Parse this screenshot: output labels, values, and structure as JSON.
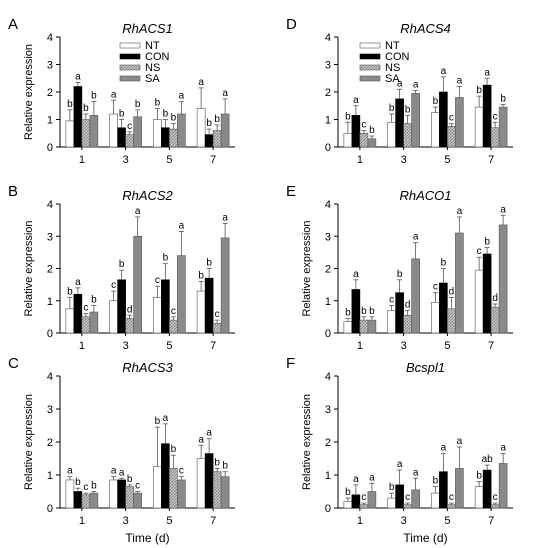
{
  "figure": {
    "series": [
      {
        "name": "NT",
        "fill": "#ffffff",
        "pattern": "none"
      },
      {
        "name": "CON",
        "fill": "#000000",
        "pattern": "none"
      },
      {
        "name": "NS",
        "fill": "#bdbdbd",
        "pattern": "hatch"
      },
      {
        "name": "SA",
        "fill": "#8a8a8a",
        "pattern": "none"
      }
    ],
    "colors": {
      "axis": "#000000",
      "bar_outline": "#555555"
    }
  },
  "chart_data": [
    {
      "type": "bar",
      "letter": "A",
      "title": "RhACS1",
      "categories": [
        "1",
        "3",
        "5",
        "7"
      ],
      "ylim": [
        0,
        4
      ],
      "yticks": [
        "0",
        "1",
        "2",
        "3",
        "4"
      ],
      "ylabel": "Relative expression",
      "xlabel": "",
      "legend": "top-right",
      "series": [
        {
          "name": "NT",
          "values": [
            0.95,
            1.2,
            1.0,
            1.4
          ],
          "errors": [
            0.4,
            0.5,
            0.4,
            0.75
          ],
          "labels": [
            "b",
            "a",
            "b",
            "a"
          ]
        },
        {
          "name": "CON",
          "values": [
            2.2,
            0.7,
            0.7,
            0.45
          ],
          "errors": [
            0.15,
            0.3,
            0.3,
            0.2
          ],
          "labels": [
            "a",
            "b",
            "b",
            "b"
          ]
        },
        {
          "name": "NS",
          "values": [
            1.0,
            0.45,
            0.65,
            0.6
          ],
          "errors": [
            0.2,
            0.1,
            0.2,
            0.2
          ],
          "labels": [
            "b",
            "c",
            "b",
            "b"
          ]
        },
        {
          "name": "SA",
          "values": [
            1.15,
            1.1,
            1.2,
            1.2
          ],
          "errors": [
            0.5,
            0.25,
            0.45,
            0.55
          ],
          "labels": [
            "b",
            "b",
            "a",
            "a"
          ]
        }
      ]
    },
    {
      "type": "bar",
      "letter": "D",
      "title": "RhACS4",
      "categories": [
        "1",
        "3",
        "5",
        "7"
      ],
      "ylim": [
        0,
        4
      ],
      "yticks": [
        "0",
        "1",
        "2",
        "3",
        "4"
      ],
      "ylabel": "",
      "xlabel": "",
      "legend": "top-left",
      "series": [
        {
          "name": "NT",
          "values": [
            0.5,
            0.9,
            1.25,
            1.45
          ],
          "errors": [
            0.4,
            0.3,
            0.2,
            0.4
          ],
          "labels": [
            "b",
            "b",
            "b",
            "b"
          ]
        },
        {
          "name": "CON",
          "values": [
            1.15,
            1.75,
            2.0,
            2.25
          ],
          "errors": [
            0.35,
            0.35,
            0.55,
            0.25
          ],
          "labels": [
            "a",
            "a",
            "a",
            "a"
          ]
        },
        {
          "name": "NS",
          "values": [
            0.5,
            0.85,
            0.75,
            0.7
          ],
          "errors": [
            0.1,
            0.3,
            0.1,
            0.2
          ],
          "labels": [
            "c",
            "b",
            "c",
            "c"
          ]
        },
        {
          "name": "SA",
          "values": [
            0.3,
            1.95,
            1.8,
            1.45
          ],
          "errors": [
            0.1,
            0.1,
            0.4,
            0.1
          ],
          "labels": [
            "b",
            "a",
            "a",
            "b"
          ]
        }
      ]
    },
    {
      "type": "bar",
      "letter": "B",
      "title": "RhACS2",
      "categories": [
        "1",
        "3",
        "5",
        "7"
      ],
      "ylim": [
        0,
        4
      ],
      "yticks": [
        "0",
        "1",
        "2",
        "3",
        "4"
      ],
      "ylabel": "Relative expression",
      "xlabel": "",
      "legend": "none",
      "series": [
        {
          "name": "NT",
          "values": [
            0.75,
            1.0,
            1.1,
            1.3
          ],
          "errors": [
            0.35,
            0.3,
            0.35,
            0.3
          ],
          "labels": [
            "b",
            "c",
            "c",
            "b"
          ]
        },
        {
          "name": "CON",
          "values": [
            1.2,
            1.65,
            1.65,
            1.7
          ],
          "errors": [
            0.2,
            0.3,
            0.5,
            0.3
          ],
          "labels": [
            "a",
            "b",
            "b",
            "b"
          ]
        },
        {
          "name": "NS",
          "values": [
            0.5,
            0.45,
            0.4,
            0.3
          ],
          "errors": [
            0.1,
            0.1,
            0.1,
            0.1
          ],
          "labels": [
            "c",
            "d",
            "c",
            "c"
          ]
        },
        {
          "name": "SA",
          "values": [
            0.65,
            3.0,
            2.4,
            2.95
          ],
          "errors": [
            0.2,
            0.6,
            0.75,
            0.45
          ],
          "labels": [
            "b",
            "a",
            "a",
            "a"
          ]
        }
      ]
    },
    {
      "type": "bar",
      "letter": "E",
      "title": "RhACO1",
      "categories": [
        "1",
        "3",
        "5",
        "7"
      ],
      "ylim": [
        0,
        4
      ],
      "yticks": [
        "0",
        "1",
        "2",
        "3",
        "4"
      ],
      "ylabel": "Relative expression",
      "xlabel": "",
      "legend": "none",
      "series": [
        {
          "name": "NT",
          "values": [
            0.35,
            0.7,
            0.95,
            1.95
          ],
          "errors": [
            0.1,
            0.15,
            0.3,
            0.4
          ],
          "labels": [
            "b",
            "c",
            "c",
            "c"
          ]
        },
        {
          "name": "CON",
          "values": [
            1.35,
            1.25,
            1.55,
            2.45
          ],
          "errors": [
            0.3,
            0.4,
            0.45,
            0.2
          ],
          "labels": [
            "a",
            "b",
            "b",
            "b"
          ]
        },
        {
          "name": "NS",
          "values": [
            0.4,
            0.55,
            0.75,
            0.8
          ],
          "errors": [
            0.1,
            0.15,
            0.35,
            0.1
          ],
          "labels": [
            "b",
            "d",
            "d",
            "d"
          ]
        },
        {
          "name": "SA",
          "values": [
            0.4,
            2.3,
            3.1,
            3.35
          ],
          "errors": [
            0.1,
            0.5,
            0.5,
            0.3
          ],
          "labels": [
            "b",
            "a",
            "a",
            "a"
          ]
        }
      ]
    },
    {
      "type": "bar",
      "letter": "C",
      "title": "RhACS3",
      "categories": [
        "1",
        "3",
        "5",
        "7"
      ],
      "ylim": [
        0,
        4
      ],
      "yticks": [
        "0",
        "1",
        "2",
        "3",
        "4"
      ],
      "ylabel": "Relative expression",
      "xlabel": "Time (d)",
      "legend": "none",
      "series": [
        {
          "name": "NT",
          "values": [
            0.85,
            0.85,
            1.25,
            1.5
          ],
          "errors": [
            0.1,
            0.1,
            1.2,
            0.4
          ],
          "labels": [
            "a",
            "a",
            "b",
            "a"
          ]
        },
        {
          "name": "CON",
          "values": [
            0.5,
            0.85,
            1.95,
            1.65
          ],
          "errors": [
            0.1,
            0.05,
            0.6,
            0.45
          ],
          "labels": [
            "b",
            "a",
            "a",
            "a"
          ]
        },
        {
          "name": "NS",
          "values": [
            0.4,
            0.65,
            1.2,
            1.1
          ],
          "errors": [
            0.05,
            0.05,
            0.4,
            0.1
          ],
          "labels": [
            "c",
            "b",
            "b",
            "b"
          ]
        },
        {
          "name": "SA",
          "values": [
            0.45,
            0.45,
            0.85,
            0.95
          ],
          "errors": [
            0.05,
            0.05,
            0.1,
            0.15
          ],
          "labels": [
            "b",
            "c",
            "c",
            "b"
          ]
        }
      ]
    },
    {
      "type": "bar",
      "letter": "F",
      "title": "Bcspl1",
      "categories": [
        "1",
        "3",
        "5",
        "7"
      ],
      "ylim": [
        0,
        4
      ],
      "yticks": [
        "0",
        "1",
        "2",
        "3",
        "4"
      ],
      "ylabel": "Relative expression",
      "xlabel": "Time (d)",
      "legend": "none",
      "series": [
        {
          "name": "NT",
          "values": [
            0.2,
            0.3,
            0.45,
            0.65
          ],
          "errors": [
            0.1,
            0.15,
            0.2,
            0.15
          ],
          "labels": [
            "b",
            "b",
            "b",
            "b"
          ]
        },
        {
          "name": "CON",
          "values": [
            0.4,
            0.7,
            1.1,
            1.15
          ],
          "errors": [
            0.3,
            0.45,
            0.55,
            0.15
          ],
          "labels": [
            "a",
            "a",
            "a",
            "ab"
          ]
        },
        {
          "name": "NS",
          "values": [
            0.1,
            0.1,
            0.1,
            0.1
          ],
          "errors": [
            0.05,
            0.05,
            0.05,
            0.05
          ],
          "labels": [
            "c",
            "c",
            "c",
            "c"
          ]
        },
        {
          "name": "SA",
          "values": [
            0.5,
            0.55,
            1.2,
            1.35
          ],
          "errors": [
            0.25,
            0.35,
            0.65,
            0.3
          ],
          "labels": [
            "a",
            "a",
            "a",
            "a"
          ]
        }
      ]
    }
  ]
}
